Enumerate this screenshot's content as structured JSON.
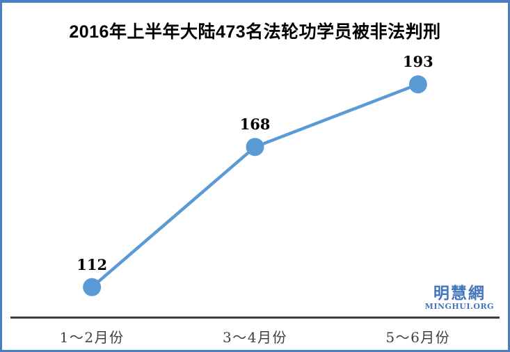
{
  "chart_data": {
    "type": "line",
    "title": "2016年上半年大陆473名法轮功学员被非法判刑",
    "categories": [
      "1～2月份",
      "3～4月份",
      "5～6月份"
    ],
    "values": [
      112,
      168,
      193
    ],
    "xlabel": "",
    "ylabel": "",
    "ylim": [
      100,
      225
    ],
    "grid": false,
    "legend": false,
    "data_labels_shown": true,
    "marker": "circle"
  },
  "watermark": {
    "logo_text": "明慧網",
    "url_text": "MINGHUI.ORG"
  },
  "colors": {
    "series_blue": "#5B9BD5",
    "frame_border_blue": "#4A7EBC",
    "axis_line_gray": "#3F3F3F",
    "axis_label_gray": "#3F3F3F",
    "title_black": "#000000",
    "watermark_blue": "#4376BC"
  }
}
